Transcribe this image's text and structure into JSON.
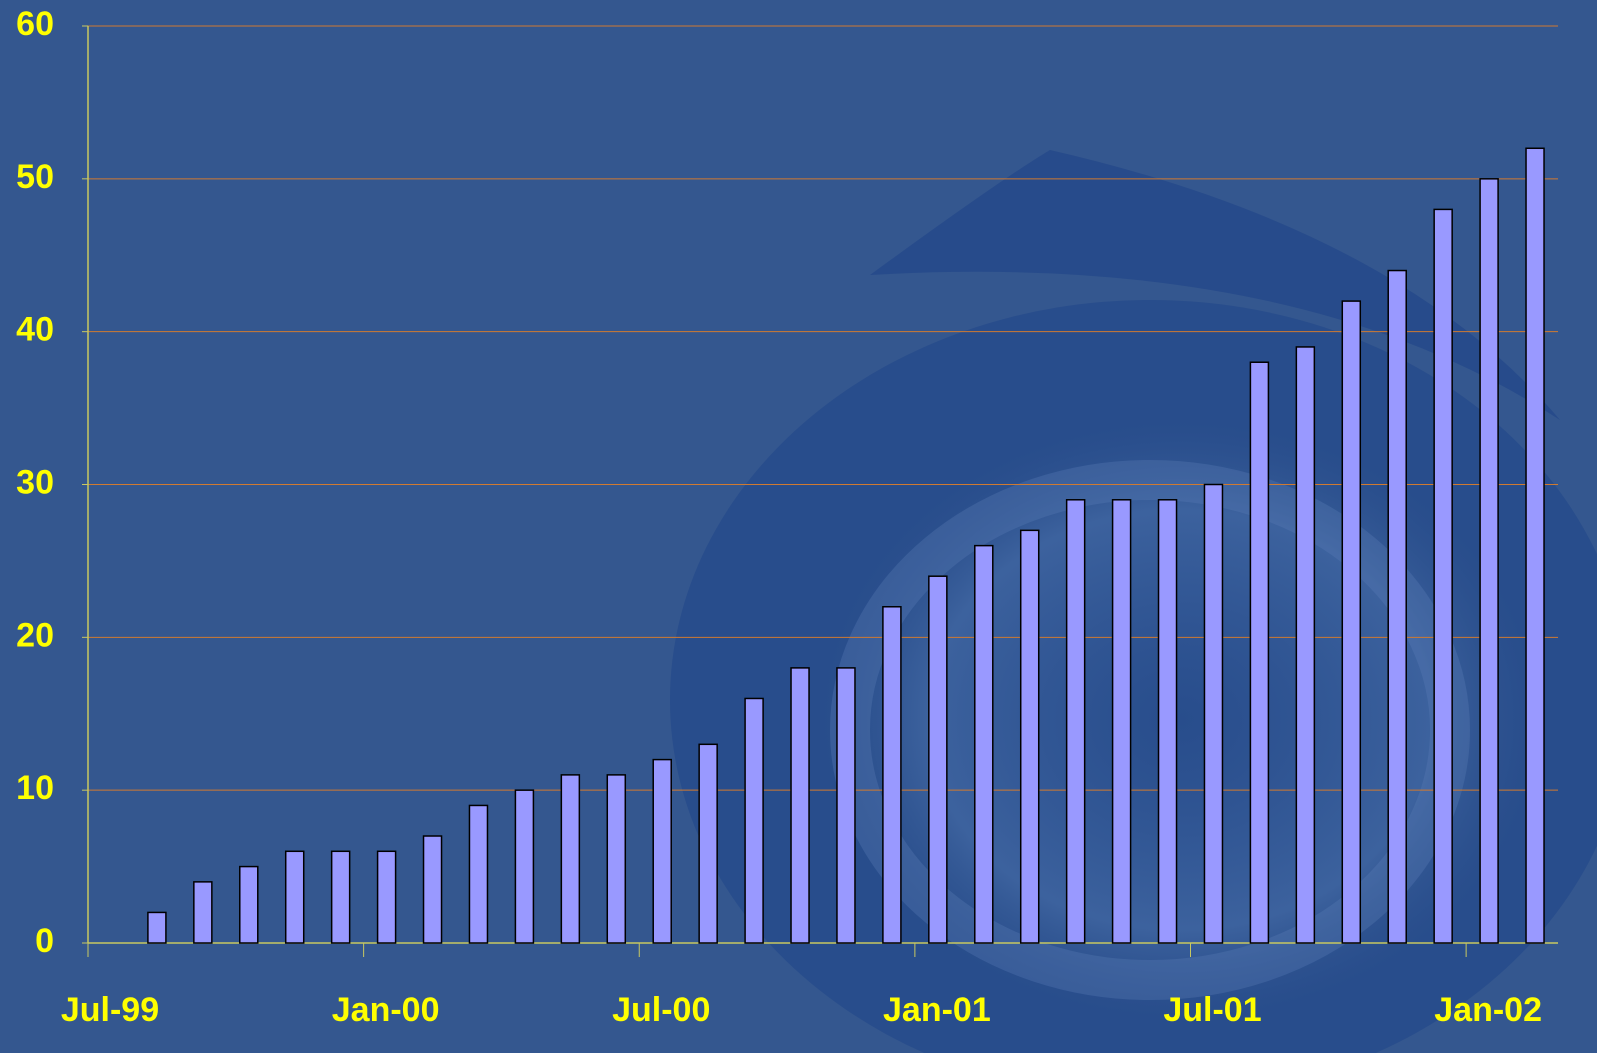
{
  "chart_data": {
    "type": "bar",
    "x": [
      "1999-08",
      "1999-09",
      "1999-10",
      "1999-11",
      "1999-12",
      "2000-01",
      "2000-02",
      "2000-03",
      "2000-04",
      "2000-05",
      "2000-06",
      "2000-07",
      "2000-08",
      "2000-09",
      "2000-10",
      "2000-11",
      "2000-12",
      "2001-01",
      "2001-02",
      "2001-03",
      "2001-04",
      "2001-05",
      "2001-06",
      "2001-07",
      "2001-08",
      "2001-09",
      "2001-10",
      "2001-11",
      "2001-12",
      "2002-01",
      "2002-02"
    ],
    "values": [
      2,
      4,
      5,
      6,
      6,
      6,
      7,
      9,
      10,
      11,
      11,
      12,
      13,
      16,
      18,
      18,
      22,
      24,
      26,
      27,
      29,
      29,
      29,
      30,
      38,
      39,
      42,
      44,
      48,
      50,
      52
    ],
    "color": "#9999ff",
    "xlim": [
      "1999-07",
      "2002-03"
    ],
    "xticks": [
      {
        "value": "1999-07",
        "label": "Jul-99"
      },
      {
        "value": "2000-01",
        "label": "Jan-00"
      },
      {
        "value": "2000-07",
        "label": "Jul-00"
      },
      {
        "value": "2001-01",
        "label": "Jan-01"
      },
      {
        "value": "2001-07",
        "label": "Jul-01"
      },
      {
        "value": "2002-01",
        "label": "Jan-02"
      }
    ],
    "ylim": [
      0,
      60
    ],
    "yticks": [
      0,
      10,
      20,
      30,
      40,
      50,
      60
    ],
    "grid": true
  }
}
